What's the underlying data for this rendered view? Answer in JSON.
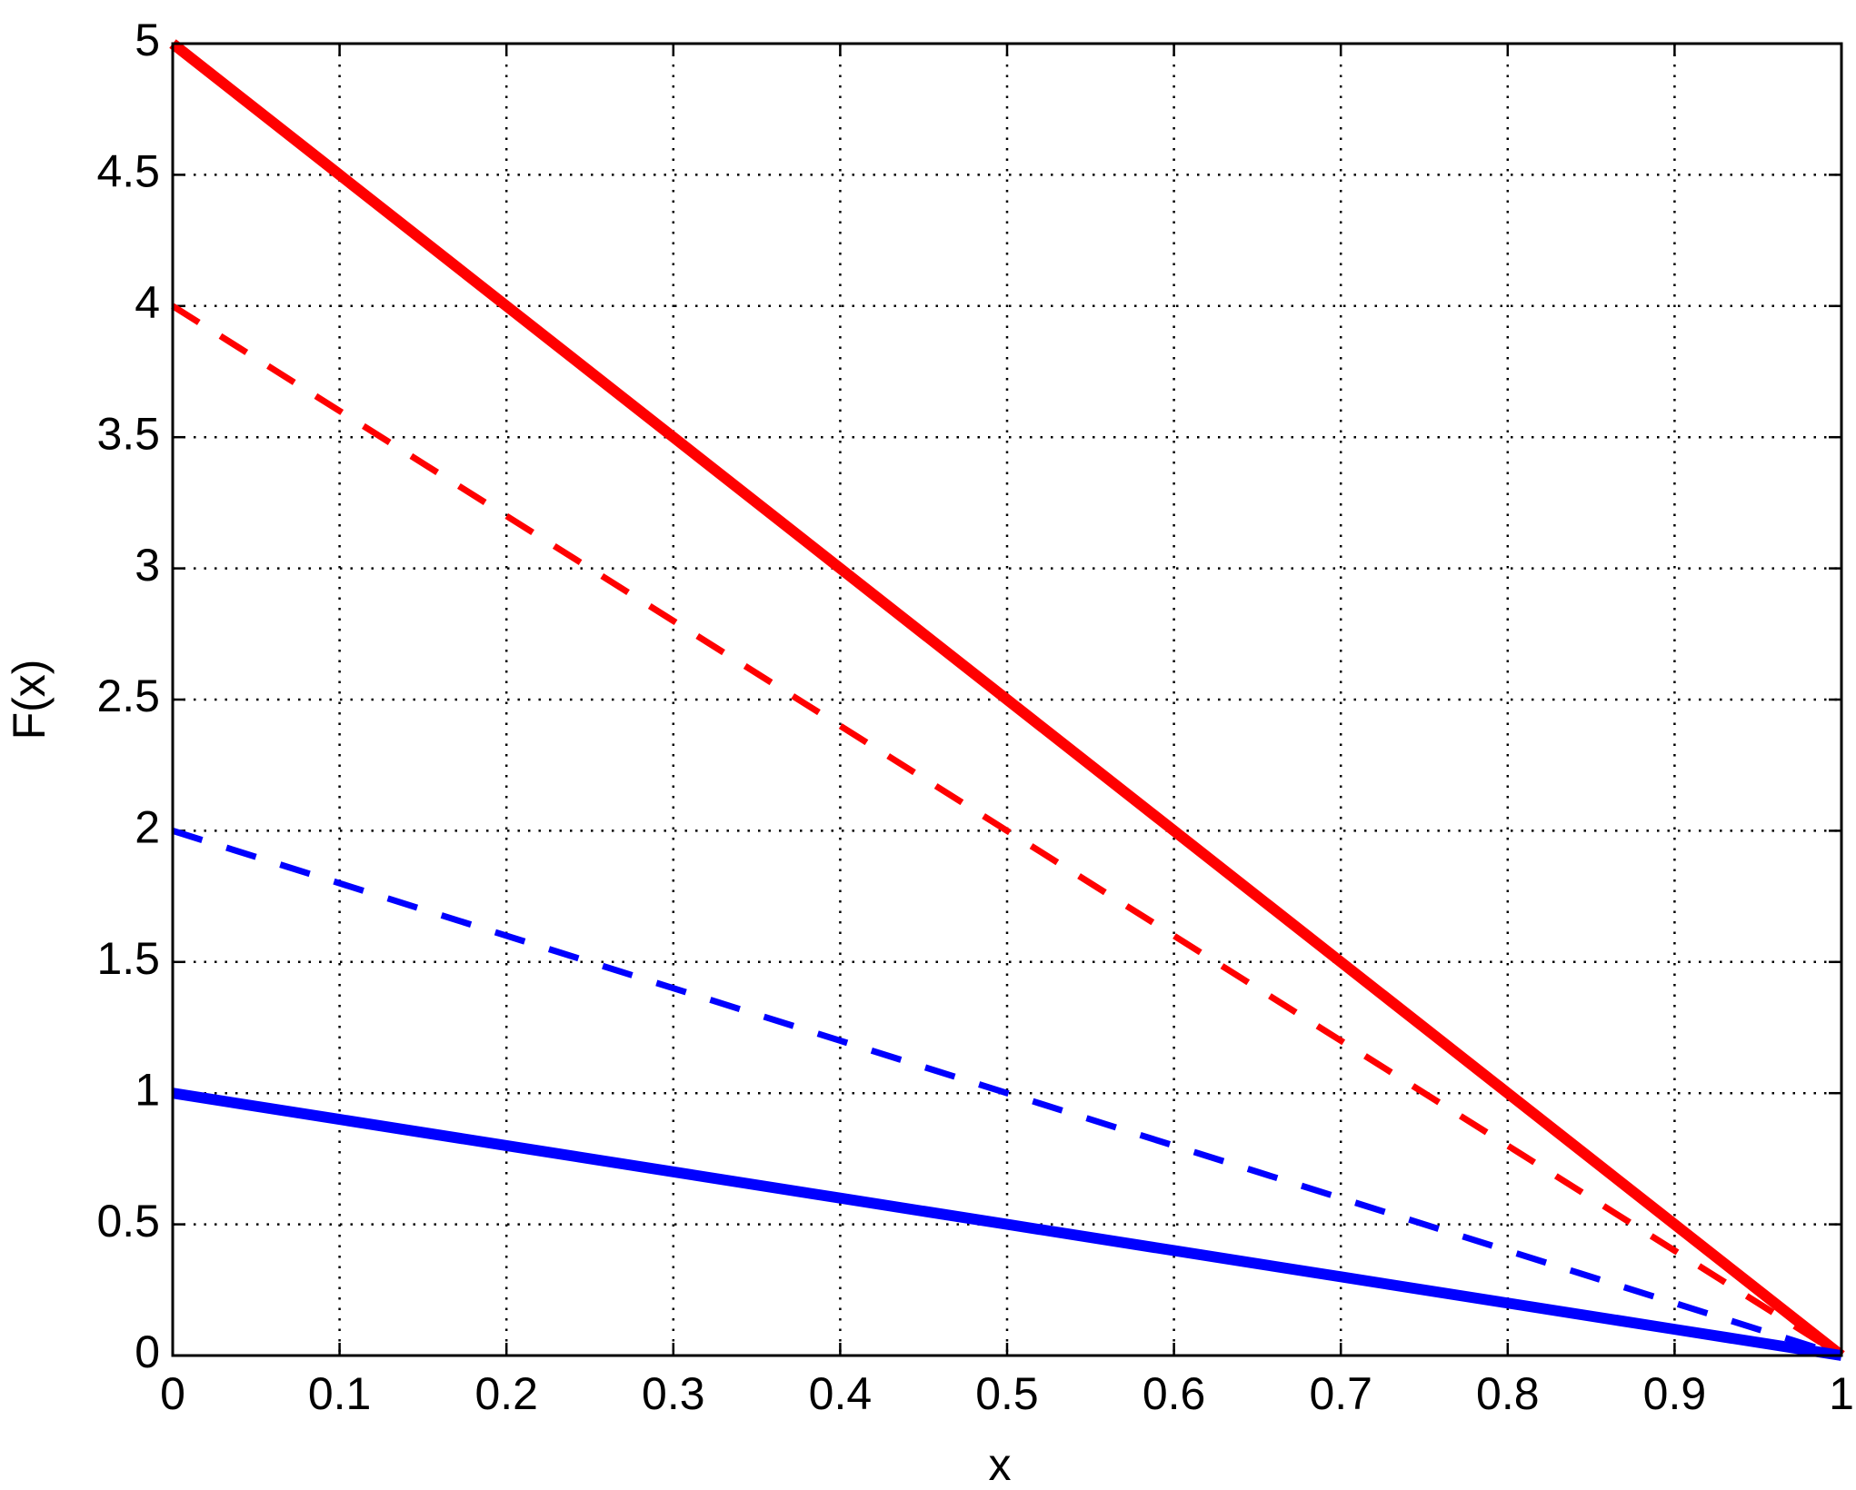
{
  "chart_data": {
    "type": "line",
    "xlabel": "x",
    "ylabel": "F(x)",
    "x": [
      0,
      0.1,
      0.2,
      0.3,
      0.4,
      0.5,
      0.6,
      0.7,
      0.8,
      0.9,
      1
    ],
    "series": [
      {
        "color": "#ff0000",
        "linestyle": "solid",
        "values": [
          5,
          4.5,
          4,
          3.5,
          3,
          2.5,
          2,
          1.5,
          1,
          0.5,
          0
        ]
      },
      {
        "color": "#ff0000",
        "linestyle": "dashed",
        "values": [
          4,
          3.6,
          3.2,
          2.8,
          2.4,
          2,
          1.6,
          1.2,
          0.8,
          0.4,
          0
        ]
      },
      {
        "color": "#0000ff",
        "linestyle": "dashed",
        "values": [
          2,
          1.8,
          1.6,
          1.4,
          1.2,
          1,
          0.8,
          0.6,
          0.4,
          0.2,
          0
        ]
      },
      {
        "color": "#0000ff",
        "linestyle": "solid",
        "values": [
          1,
          0.9,
          0.8,
          0.7,
          0.6,
          0.5,
          0.4,
          0.3,
          0.2,
          0.1,
          0
        ]
      }
    ],
    "xlim": [
      0,
      1
    ],
    "xticks": [
      0,
      0.1,
      0.2,
      0.3,
      0.4,
      0.5,
      0.6,
      0.7,
      0.8,
      0.9,
      1
    ],
    "ylim": [
      0,
      5
    ],
    "yticks": [
      0,
      0.5,
      1,
      1.5,
      2,
      2.5,
      3,
      3.5,
      4,
      4.5,
      5
    ],
    "grid": true
  }
}
